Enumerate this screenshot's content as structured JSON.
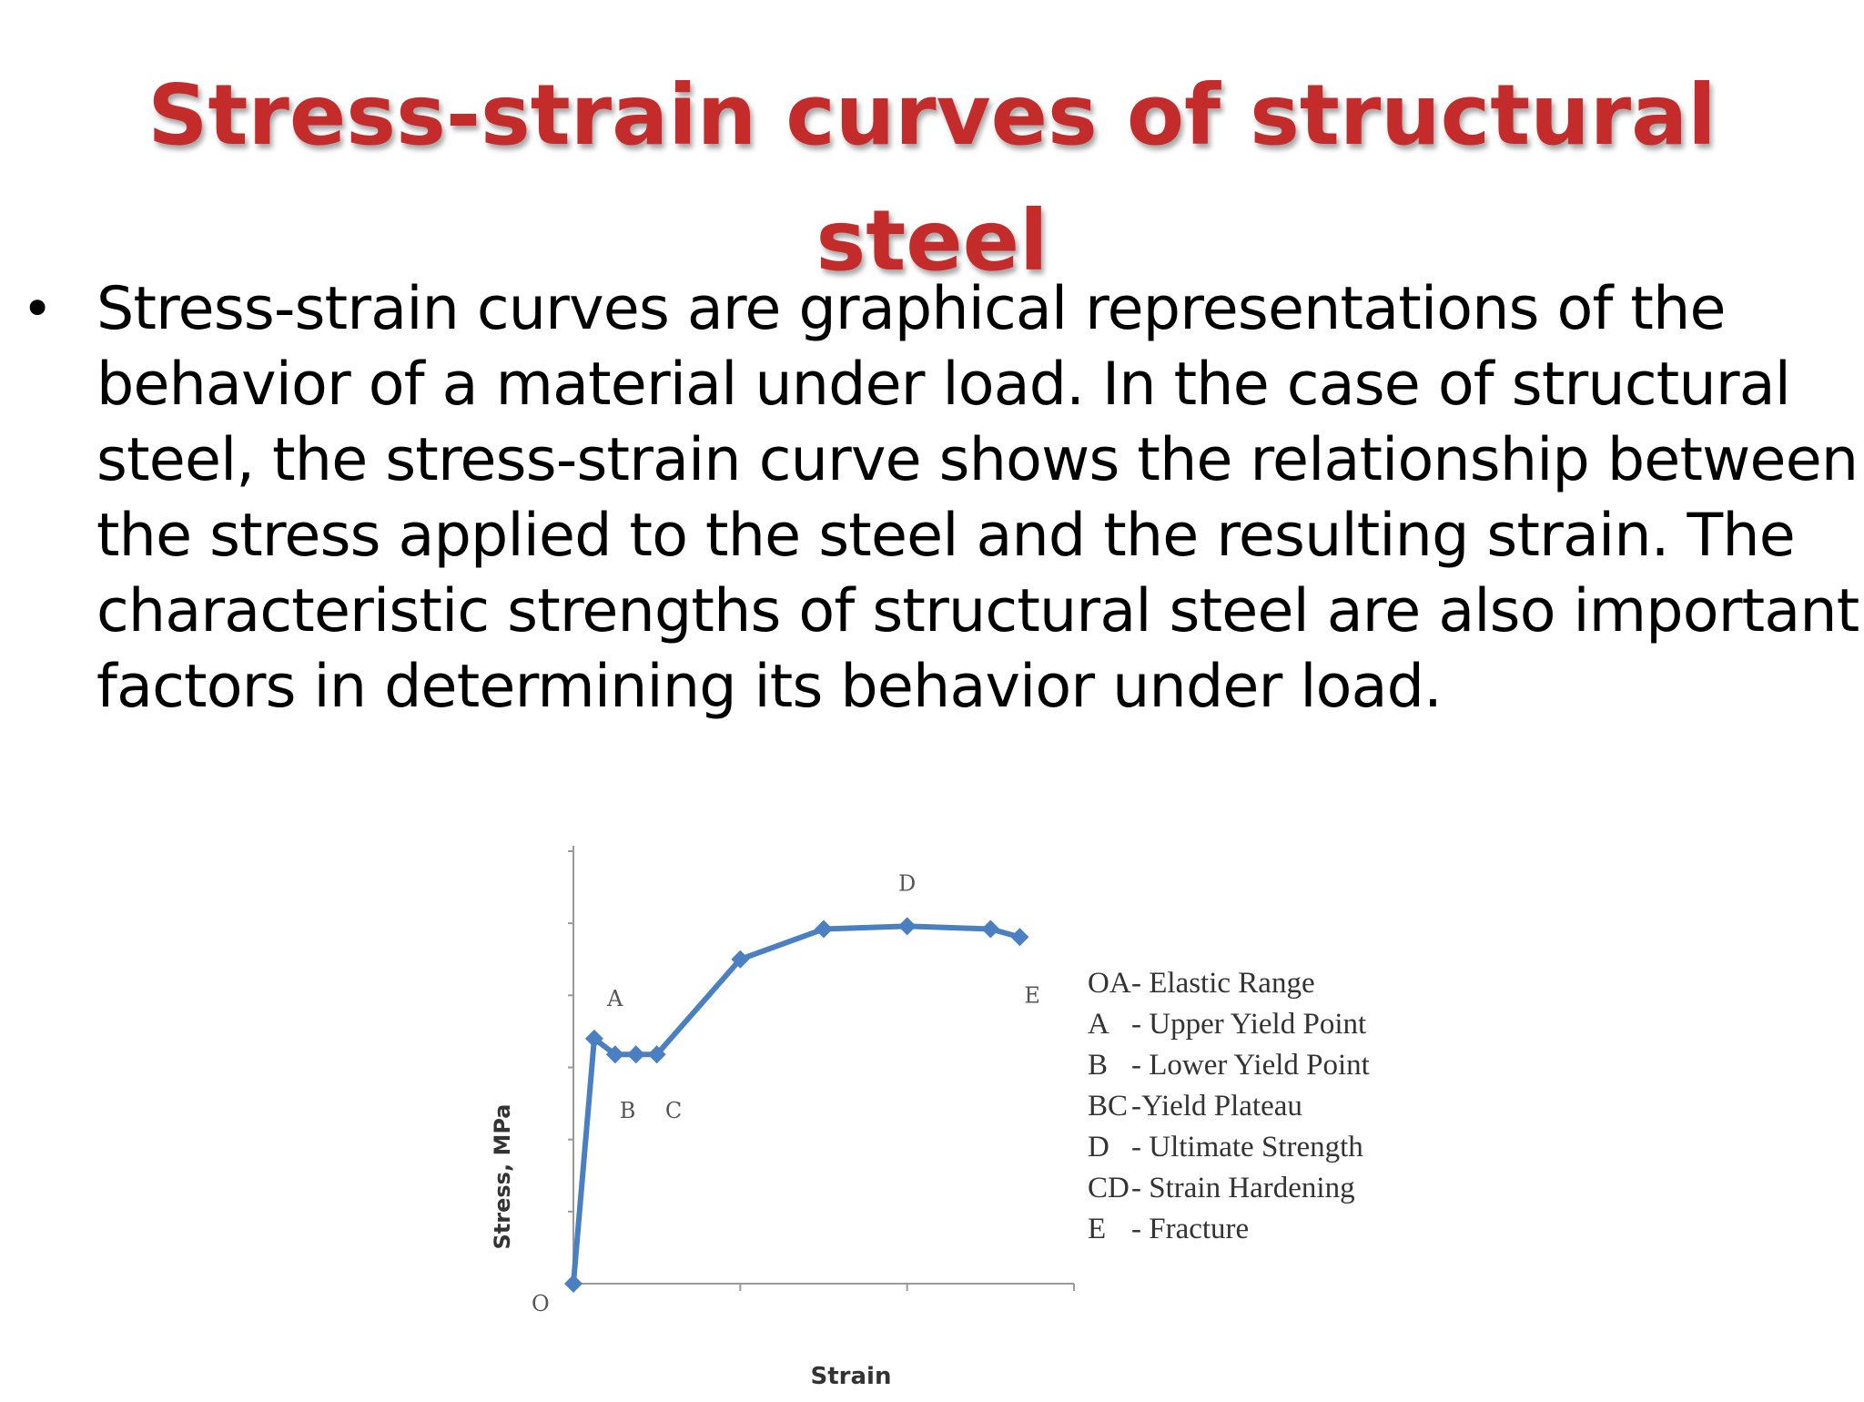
{
  "slide": {
    "title_line1": "Stress-strain curves  of structural",
    "title_line2": "steel",
    "bullet": "•",
    "body": "Stress-strain curves are graphical representations of the behavior of a material under load. In the case of structural steel, the stress-strain curve shows the relationship between the stress applied to the steel and the resulting strain. The characteristic strengths of structural steel are also important factors in determining its behavior under load.",
    "title_color": "#c42b2b"
  },
  "chart_data": {
    "type": "line",
    "xlabel": "Strain",
    "ylabel": "Stress, MPa",
    "origin_label": "O",
    "line_color": "#4a7fc1",
    "grid": false,
    "x": [
      0,
      0.5,
      1.0,
      1.5,
      2.0,
      4.0,
      6.0,
      8.0,
      10.0,
      10.7
    ],
    "y": [
      0,
      340,
      318,
      318,
      318,
      450,
      492,
      496,
      492,
      481
    ],
    "xlim": [
      0,
      12
    ],
    "ylim": [
      0,
      600
    ],
    "point_labels": [
      {
        "text": "A",
        "x": 1.0,
        "y": 385
      },
      {
        "text": "B",
        "x": 1.3,
        "y": 230
      },
      {
        "text": "C",
        "x": 2.4,
        "y": 230
      },
      {
        "text": "D",
        "x": 8.0,
        "y": 545
      },
      {
        "text": "E",
        "x": 11.0,
        "y": 390
      }
    ],
    "legend": [
      {
        "key": "OA",
        "text": "- Elastic Range"
      },
      {
        "key": "A",
        "text": "- Upper Yield Point"
      },
      {
        "key": "B",
        "text": "- Lower Yield Point"
      },
      {
        "key": "BC",
        "text": "-Yield Plateau"
      },
      {
        "key": "D",
        "text": "- Ultimate Strength"
      },
      {
        "key": "CD",
        "text": "- Strain Hardening"
      },
      {
        "key": "E",
        "text": "- Fracture"
      }
    ]
  }
}
